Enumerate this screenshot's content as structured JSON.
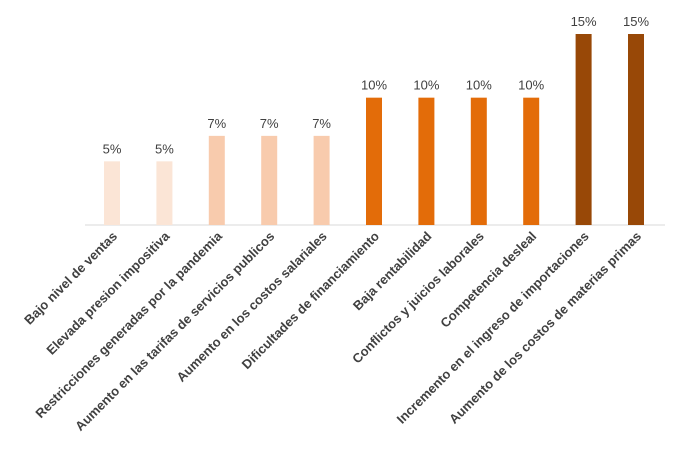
{
  "chart_data": {
    "type": "bar",
    "title": "",
    "xlabel": "",
    "ylabel": "",
    "ylim": [
      0,
      15
    ],
    "grid": false,
    "legend": "none",
    "categories": [
      "Bajo nivel de ventas",
      "Elevada presion impositiva",
      "Restricciones generadas por la pandemia",
      "Aumento en las tarifas de servicios publicos",
      "Aumento en los costos salariales",
      "Dificultades de financiamiento",
      "Baja rentabilidad",
      "Conflictos y juicios laborales",
      "Competencia desleal",
      "Incremento en el ingreso de importaciones",
      "Aumento de los costos de materias primas"
    ],
    "values": [
      5,
      5,
      7,
      7,
      7,
      10,
      10,
      10,
      10,
      15,
      15
    ],
    "data_labels": [
      "5%",
      "5%",
      "7%",
      "7%",
      "7%",
      "10%",
      "10%",
      "10%",
      "10%",
      "15%",
      "15%"
    ],
    "bar_colors": [
      "#FBE5D6",
      "#FBE5D6",
      "#F8CBAD",
      "#F8CBAD",
      "#F8CBAD",
      "#E36C09",
      "#E36C09",
      "#E36C09",
      "#E36C09",
      "#984807",
      "#984807"
    ],
    "axis_color": "#d9d9d9"
  }
}
